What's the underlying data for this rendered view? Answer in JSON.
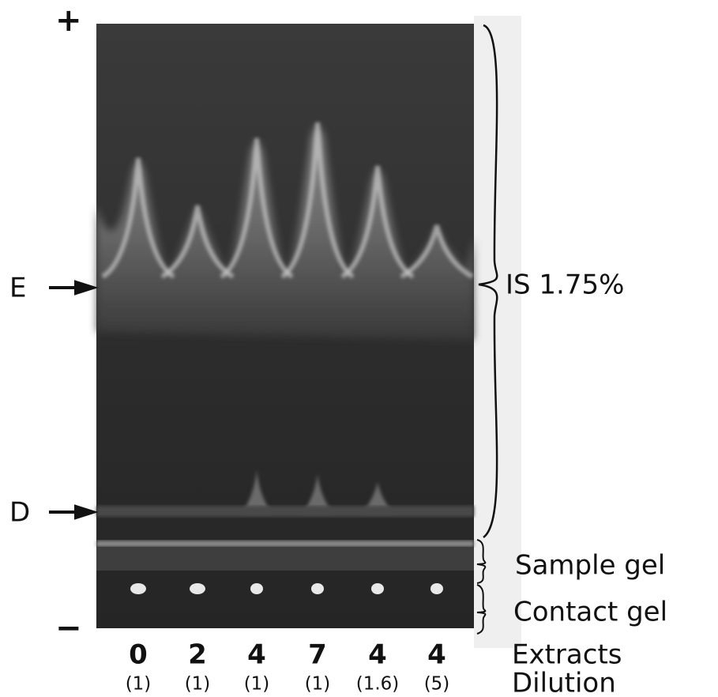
{
  "figure": {
    "pole_labels": {
      "anode": "+",
      "cathode": "−"
    },
    "markers": {
      "E": "E",
      "D": "D"
    },
    "regions": {
      "separation_gel": "IS 1.75%",
      "sample_gel": "Sample gel",
      "contact_gel": "Contact gel"
    },
    "row_labels": {
      "extracts": "Extracts",
      "dilution": "Dilution"
    },
    "lanes": [
      {
        "extract": "0",
        "dilution": "(1)"
      },
      {
        "extract": "2",
        "dilution": "(1)"
      },
      {
        "extract": "4",
        "dilution": "(1)"
      },
      {
        "extract": "7",
        "dilution": "(1)"
      },
      {
        "extract": "4",
        "dilution": "(1.6)"
      },
      {
        "extract": "4",
        "dilution": "(5)"
      }
    ]
  }
}
